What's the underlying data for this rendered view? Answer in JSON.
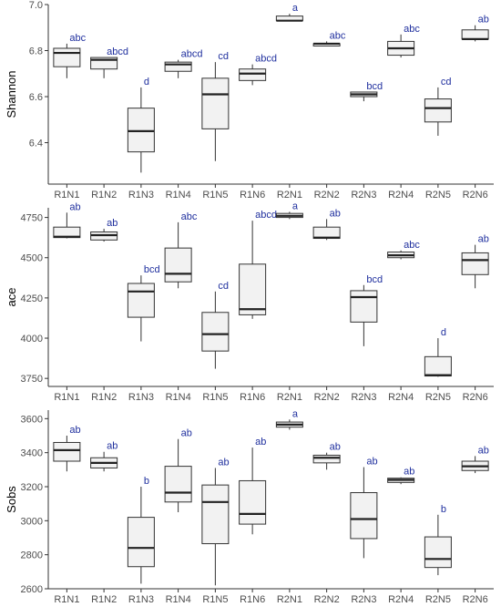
{
  "colors": {
    "box_fill": "#f2f2f2",
    "box_stroke": "#333333",
    "letter": "#1f2f9e",
    "axis": "#333333"
  },
  "chart_data": [
    {
      "type": "box",
      "ylabel": "Shannon",
      "ylim": [
        6.22,
        7.0
      ],
      "yticks": [
        6.4,
        6.6,
        6.8,
        7.0
      ],
      "ytick_labels": [
        "6.4",
        "6.6",
        "6.8",
        "7.0"
      ],
      "categories": [
        "R1N1",
        "R1N2",
        "R1N3",
        "R1N4",
        "R1N5",
        "R1N6",
        "R2N1",
        "R2N2",
        "R2N3",
        "R2N4",
        "R2N5",
        "R2N6"
      ],
      "boxes": [
        {
          "min": 6.68,
          "q1": 6.73,
          "median": 6.79,
          "q3": 6.81,
          "max": 6.83,
          "label": "abc"
        },
        {
          "min": 6.68,
          "q1": 6.72,
          "median": 6.76,
          "q3": 6.77,
          "max": 6.77,
          "label": "abcd"
        },
        {
          "min": 6.27,
          "q1": 6.36,
          "median": 6.45,
          "q3": 6.55,
          "max": 6.64,
          "label": "d"
        },
        {
          "min": 6.68,
          "q1": 6.71,
          "median": 6.74,
          "q3": 6.75,
          "max": 6.76,
          "label": "abcd"
        },
        {
          "min": 6.32,
          "q1": 6.46,
          "median": 6.61,
          "q3": 6.68,
          "max": 6.75,
          "label": "cd"
        },
        {
          "min": 6.65,
          "q1": 6.67,
          "median": 6.7,
          "q3": 6.72,
          "max": 6.74,
          "label": "abcd"
        },
        {
          "min": 6.93,
          "q1": 6.93,
          "median": 6.93,
          "q3": 6.95,
          "max": 6.96,
          "label": "a"
        },
        {
          "min": 6.82,
          "q1": 6.82,
          "median": 6.83,
          "q3": 6.83,
          "max": 6.84,
          "label": "abc"
        },
        {
          "min": 6.58,
          "q1": 6.6,
          "median": 6.61,
          "q3": 6.62,
          "max": 6.62,
          "label": "bcd"
        },
        {
          "min": 6.77,
          "q1": 6.78,
          "median": 6.81,
          "q3": 6.84,
          "max": 6.87,
          "label": "abc"
        },
        {
          "min": 6.43,
          "q1": 6.49,
          "median": 6.55,
          "q3": 6.59,
          "max": 6.64,
          "label": "cd"
        },
        {
          "min": 6.84,
          "q1": 6.85,
          "median": 6.85,
          "q3": 6.89,
          "max": 6.91,
          "label": "ab"
        }
      ]
    },
    {
      "type": "box",
      "ylabel": "ace",
      "ylim": [
        3700,
        4810
      ],
      "yticks": [
        3750,
        4000,
        4250,
        4500,
        4750
      ],
      "ytick_labels": [
        "3750",
        "4000",
        "4250",
        "4500",
        "4750"
      ],
      "categories": [
        "R1N1",
        "R1N2",
        "R1N3",
        "R1N4",
        "R1N5",
        "R1N6",
        "R2N1",
        "R2N2",
        "R2N3",
        "R2N4",
        "R2N5",
        "R2N6"
      ],
      "boxes": [
        {
          "min": 4620,
          "q1": 4625,
          "median": 4630,
          "q3": 4690,
          "max": 4780,
          "label": "ab"
        },
        {
          "min": 4600,
          "q1": 4610,
          "median": 4640,
          "q3": 4660,
          "max": 4680,
          "label": "ab"
        },
        {
          "min": 3980,
          "q1": 4130,
          "median": 4290,
          "q3": 4340,
          "max": 4390,
          "label": "bcd"
        },
        {
          "min": 4310,
          "q1": 4350,
          "median": 4400,
          "q3": 4560,
          "max": 4720,
          "label": "abc"
        },
        {
          "min": 3810,
          "q1": 3920,
          "median": 4025,
          "q3": 4160,
          "max": 4290,
          "label": "cd"
        },
        {
          "min": 4120,
          "q1": 4145,
          "median": 4180,
          "q3": 4460,
          "max": 4730,
          "label": "abcd"
        },
        {
          "min": 4740,
          "q1": 4750,
          "median": 4760,
          "q3": 4775,
          "max": 4785,
          "label": "a"
        },
        {
          "min": 4610,
          "q1": 4620,
          "median": 4625,
          "q3": 4690,
          "max": 4740,
          "label": "ab"
        },
        {
          "min": 3950,
          "q1": 4100,
          "median": 4255,
          "q3": 4295,
          "max": 4330,
          "label": "bcd"
        },
        {
          "min": 4490,
          "q1": 4500,
          "median": 4515,
          "q3": 4535,
          "max": 4545,
          "label": "abc"
        },
        {
          "min": 3760,
          "q1": 3765,
          "median": 3770,
          "q3": 3885,
          "max": 4000,
          "label": "d"
        },
        {
          "min": 4310,
          "q1": 4395,
          "median": 4485,
          "q3": 4530,
          "max": 4580,
          "label": "ab"
        }
      ]
    },
    {
      "type": "box",
      "ylabel": "Sobs",
      "ylim": [
        2600,
        3650
      ],
      "yticks": [
        2600,
        2800,
        3000,
        3200,
        3400,
        3600
      ],
      "ytick_labels": [
        "2600",
        "2800",
        "3000",
        "3200",
        "3400",
        "3600"
      ],
      "categories": [
        "R1N1",
        "R1N2",
        "R1N3",
        "R1N4",
        "R1N5",
        "R1N6",
        "R2N1",
        "R2N2",
        "R2N3",
        "R2N4",
        "R2N5",
        "R2N6"
      ],
      "boxes": [
        {
          "min": 3290,
          "q1": 3350,
          "median": 3415,
          "q3": 3460,
          "max": 3500,
          "label": "ab"
        },
        {
          "min": 3290,
          "q1": 3310,
          "median": 3340,
          "q3": 3370,
          "max": 3405,
          "label": "ab"
        },
        {
          "min": 2630,
          "q1": 2730,
          "median": 2840,
          "q3": 3020,
          "max": 3200,
          "label": "b"
        },
        {
          "min": 3050,
          "q1": 3110,
          "median": 3165,
          "q3": 3320,
          "max": 3480,
          "label": "ab"
        },
        {
          "min": 2620,
          "q1": 2865,
          "median": 3110,
          "q3": 3210,
          "max": 3310,
          "label": "ab"
        },
        {
          "min": 2920,
          "q1": 2980,
          "median": 3040,
          "q3": 3235,
          "max": 3430,
          "label": "ab"
        },
        {
          "min": 3535,
          "q1": 3550,
          "median": 3565,
          "q3": 3580,
          "max": 3595,
          "label": "a"
        },
        {
          "min": 3300,
          "q1": 3340,
          "median": 3370,
          "q3": 3385,
          "max": 3400,
          "label": "ab"
        },
        {
          "min": 2780,
          "q1": 2895,
          "median": 3010,
          "q3": 3165,
          "max": 3315,
          "label": "ab"
        },
        {
          "min": 3215,
          "q1": 3225,
          "median": 3240,
          "q3": 3250,
          "max": 3255,
          "label": "ab"
        },
        {
          "min": 2680,
          "q1": 2725,
          "median": 2775,
          "q3": 2905,
          "max": 3035,
          "label": "b"
        },
        {
          "min": 3280,
          "q1": 3295,
          "median": 3320,
          "q3": 3350,
          "max": 3380,
          "label": "ab"
        }
      ]
    }
  ]
}
